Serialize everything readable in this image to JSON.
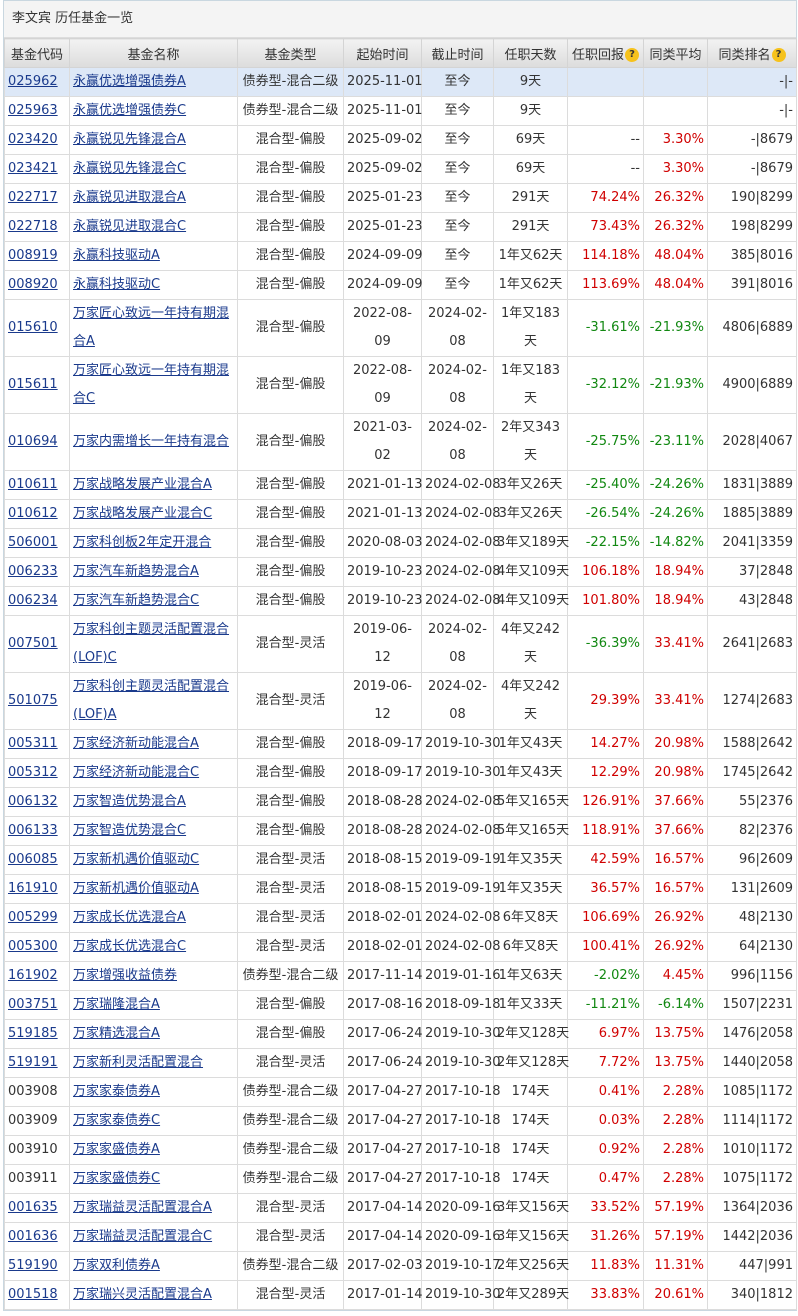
{
  "title": "李文宾 历任基金一览",
  "colors": {
    "positive": "#d00000",
    "negative": "#118811",
    "link": "#1a3a8c",
    "highlight": "#dde8f7"
  },
  "headers": [
    "基金代码",
    "基金名称",
    "基金类型",
    "起始时间",
    "截止时间",
    "任职天数",
    "任职回报",
    "同类平均",
    "同类排名"
  ],
  "help_icon": "?",
  "rows": [
    [
      "025962",
      "永赢优选增强债券A",
      "债券型-混合二级",
      "2025-11-01",
      "至今",
      "9天",
      "",
      "",
      "-|-"
    ],
    [
      "025963",
      "永赢优选增强债券C",
      "债券型-混合二级",
      "2025-11-01",
      "至今",
      "9天",
      "",
      "",
      "-|-"
    ],
    [
      "023420",
      "永赢锐见先锋混合A",
      "混合型-偏股",
      "2025-09-02",
      "至今",
      "69天",
      "--",
      "3.30%",
      "-|8679"
    ],
    [
      "023421",
      "永赢锐见先锋混合C",
      "混合型-偏股",
      "2025-09-02",
      "至今",
      "69天",
      "--",
      "3.30%",
      "-|8679"
    ],
    [
      "022717",
      "永赢锐见进取混合A",
      "混合型-偏股",
      "2025-01-23",
      "至今",
      "291天",
      "74.24%",
      "26.32%",
      "190|8299"
    ],
    [
      "022718",
      "永赢锐见进取混合C",
      "混合型-偏股",
      "2025-01-23",
      "至今",
      "291天",
      "73.43%",
      "26.32%",
      "198|8299"
    ],
    [
      "008919",
      "永赢科技驱动A",
      "混合型-偏股",
      "2024-09-09",
      "至今",
      "1年又62天",
      "114.18%",
      "48.04%",
      "385|8016"
    ],
    [
      "008920",
      "永赢科技驱动C",
      "混合型-偏股",
      "2024-09-09",
      "至今",
      "1年又62天",
      "113.69%",
      "48.04%",
      "391|8016"
    ],
    [
      "015610",
      "万家匠心致远一年持有期混合A",
      "混合型-偏股",
      "2022-08-09",
      "2024-02-08",
      "1年又183天",
      "-31.61%",
      "-21.93%",
      "4806|6889"
    ],
    [
      "015611",
      "万家匠心致远一年持有期混合C",
      "混合型-偏股",
      "2022-08-09",
      "2024-02-08",
      "1年又183天",
      "-32.12%",
      "-21.93%",
      "4900|6889"
    ],
    [
      "010694",
      "万家内需增长一年持有混合",
      "混合型-偏股",
      "2021-03-02",
      "2024-02-08",
      "2年又343天",
      "-25.75%",
      "-23.11%",
      "2028|4067"
    ],
    [
      "010611",
      "万家战略发展产业混合A",
      "混合型-偏股",
      "2021-01-13",
      "2024-02-08",
      "3年又26天",
      "-25.40%",
      "-24.26%",
      "1831|3889"
    ],
    [
      "010612",
      "万家战略发展产业混合C",
      "混合型-偏股",
      "2021-01-13",
      "2024-02-08",
      "3年又26天",
      "-26.54%",
      "-24.26%",
      "1885|3889"
    ],
    [
      "506001",
      "万家科创板2年定开混合",
      "混合型-偏股",
      "2020-08-03",
      "2024-02-08",
      "3年又189天",
      "-22.15%",
      "-14.82%",
      "2041|3359"
    ],
    [
      "006233",
      "万家汽车新趋势混合A",
      "混合型-偏股",
      "2019-10-23",
      "2024-02-08",
      "4年又109天",
      "106.18%",
      "18.94%",
      "37|2848"
    ],
    [
      "006234",
      "万家汽车新趋势混合C",
      "混合型-偏股",
      "2019-10-23",
      "2024-02-08",
      "4年又109天",
      "101.80%",
      "18.94%",
      "43|2848"
    ],
    [
      "007501",
      "万家科创主题灵活配置混合(LOF)C",
      "混合型-灵活",
      "2019-06-12",
      "2024-02-08",
      "4年又242天",
      "-36.39%",
      "33.41%",
      "2641|2683"
    ],
    [
      "501075",
      "万家科创主题灵活配置混合(LOF)A",
      "混合型-灵活",
      "2019-06-12",
      "2024-02-08",
      "4年又242天",
      "29.39%",
      "33.41%",
      "1274|2683"
    ],
    [
      "005311",
      "万家经济新动能混合A",
      "混合型-偏股",
      "2018-09-17",
      "2019-10-30",
      "1年又43天",
      "14.27%",
      "20.98%",
      "1588|2642"
    ],
    [
      "005312",
      "万家经济新动能混合C",
      "混合型-偏股",
      "2018-09-17",
      "2019-10-30",
      "1年又43天",
      "12.29%",
      "20.98%",
      "1745|2642"
    ],
    [
      "006132",
      "万家智造优势混合A",
      "混合型-偏股",
      "2018-08-28",
      "2024-02-08",
      "5年又165天",
      "126.91%",
      "37.66%",
      "55|2376"
    ],
    [
      "006133",
      "万家智造优势混合C",
      "混合型-偏股",
      "2018-08-28",
      "2024-02-08",
      "5年又165天",
      "118.91%",
      "37.66%",
      "82|2376"
    ],
    [
      "006085",
      "万家新机遇价值驱动C",
      "混合型-灵活",
      "2018-08-15",
      "2019-09-19",
      "1年又35天",
      "42.59%",
      "16.57%",
      "96|2609"
    ],
    [
      "161910",
      "万家新机遇价值驱动A",
      "混合型-灵活",
      "2018-08-15",
      "2019-09-19",
      "1年又35天",
      "36.57%",
      "16.57%",
      "131|2609"
    ],
    [
      "005299",
      "万家成长优选混合A",
      "混合型-灵活",
      "2018-02-01",
      "2024-02-08",
      "6年又8天",
      "106.69%",
      "26.92%",
      "48|2130"
    ],
    [
      "005300",
      "万家成长优选混合C",
      "混合型-灵活",
      "2018-02-01",
      "2024-02-08",
      "6年又8天",
      "100.41%",
      "26.92%",
      "64|2130"
    ],
    [
      "161902",
      "万家增强收益债券",
      "债券型-混合二级",
      "2017-11-14",
      "2019-01-16",
      "1年又63天",
      "-2.02%",
      "4.45%",
      "996|1156"
    ],
    [
      "003751",
      "万家瑞隆混合A",
      "混合型-偏股",
      "2017-08-16",
      "2018-09-18",
      "1年又33天",
      "-11.21%",
      "-6.14%",
      "1507|2231"
    ],
    [
      "519185",
      "万家精选混合A",
      "混合型-偏股",
      "2017-06-24",
      "2019-10-30",
      "2年又128天",
      "6.97%",
      "13.75%",
      "1476|2058"
    ],
    [
      "519191",
      "万家新利灵活配置混合",
      "混合型-灵活",
      "2017-06-24",
      "2019-10-30",
      "2年又128天",
      "7.72%",
      "13.75%",
      "1440|2058"
    ],
    [
      "003908",
      "万家家泰债券A",
      "债券型-混合二级",
      "2017-04-27",
      "2017-10-18",
      "174天",
      "0.41%",
      "2.28%",
      "1085|1172"
    ],
    [
      "003909",
      "万家家泰债券C",
      "债券型-混合二级",
      "2017-04-27",
      "2017-10-18",
      "174天",
      "0.03%",
      "2.28%",
      "1114|1172"
    ],
    [
      "003910",
      "万家家盛债券A",
      "债券型-混合二级",
      "2017-04-27",
      "2017-10-18",
      "174天",
      "0.92%",
      "2.28%",
      "1010|1172"
    ],
    [
      "003911",
      "万家家盛债券C",
      "债券型-混合二级",
      "2017-04-27",
      "2017-10-18",
      "174天",
      "0.47%",
      "2.28%",
      "1075|1172"
    ],
    [
      "001635",
      "万家瑞益灵活配置混合A",
      "混合型-灵活",
      "2017-04-14",
      "2020-09-16",
      "3年又156天",
      "33.52%",
      "57.19%",
      "1364|2036"
    ],
    [
      "001636",
      "万家瑞益灵活配置混合C",
      "混合型-灵活",
      "2017-04-14",
      "2020-09-16",
      "3年又156天",
      "31.26%",
      "57.19%",
      "1442|2036"
    ],
    [
      "519190",
      "万家双利债券A",
      "债券型-混合二级",
      "2017-02-03",
      "2019-10-17",
      "2年又256天",
      "11.83%",
      "11.31%",
      "447|991"
    ],
    [
      "001518",
      "万家瑞兴灵活配置混合A",
      "混合型-灵活",
      "2017-01-14",
      "2019-10-30",
      "2年又289天",
      "33.83%",
      "20.61%",
      "340|1812"
    ]
  ],
  "plain_codes": [
    "003908",
    "003909",
    "003910",
    "003911"
  ],
  "highlighted_row": 0
}
